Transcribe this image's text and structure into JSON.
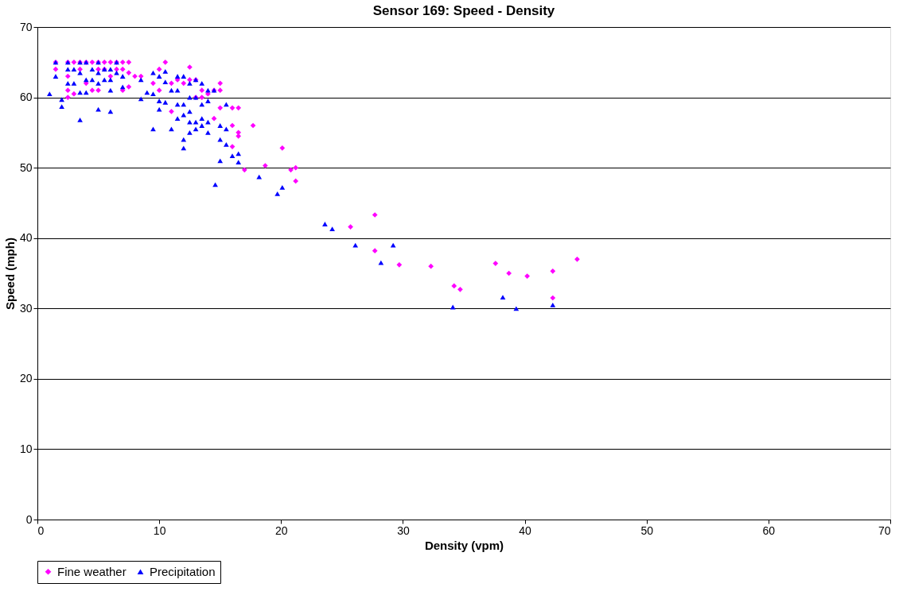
{
  "chart_data": {
    "type": "scatter",
    "title": "Sensor 169: Speed - Density",
    "xlabel": "Density (vpm)",
    "ylabel": "Speed (mph)",
    "xlim": [
      0,
      70
    ],
    "xticks": [
      0,
      10,
      20,
      30,
      40,
      50,
      60,
      70
    ],
    "ylim": [
      0,
      70
    ],
    "yticks": [
      0,
      10,
      20,
      30,
      40,
      50,
      60,
      70
    ],
    "grid": "y",
    "legend": "bottom",
    "series": [
      {
        "name": "Fine weather",
        "color": "#ff00ff",
        "marker": "diamond",
        "x": [
          1.5,
          1.5,
          2.5,
          2.5,
          2.5,
          2.5,
          3,
          3,
          3.5,
          3.5,
          4,
          4,
          4.5,
          4.5,
          5,
          5,
          5,
          5.5,
          5.5,
          6,
          6,
          6.5,
          6.5,
          7,
          7,
          7,
          7.5,
          7.5,
          7.5,
          8,
          8.5,
          9.5,
          10,
          10,
          10.5,
          11,
          11,
          11.5,
          12,
          12.5,
          12.5,
          13,
          13,
          13.5,
          13.5,
          14,
          14.5,
          14.5,
          15,
          15,
          15,
          16,
          16,
          16.5,
          16.5,
          16.5,
          16,
          17,
          17.7,
          18.7,
          20.1,
          20.8,
          21.2,
          21.2,
          25.7,
          27.7,
          27.7,
          29.7,
          32.3,
          34.2,
          34.7,
          37.6,
          38.7,
          40.2,
          42.3,
          42.3,
          44.3
        ],
        "values": [
          64,
          65,
          65,
          63,
          61,
          60,
          65,
          60.5,
          65,
          64,
          65,
          62,
          65,
          61,
          65,
          64,
          61,
          65,
          64,
          65,
          63,
          65,
          64,
          65,
          64,
          61,
          65,
          63.5,
          61.5,
          63,
          63,
          62,
          64,
          61,
          65,
          62,
          58,
          62.5,
          62,
          64.3,
          62.5,
          62.5,
          60,
          61,
          60,
          60.5,
          61,
          57,
          62,
          61,
          58.5,
          58.5,
          56,
          58.5,
          55,
          54.5,
          53,
          49.7,
          56,
          50.3,
          52.8,
          49.7,
          50,
          48.1,
          41.6,
          43.3,
          38.2,
          36.2,
          36,
          33.2,
          32.7,
          36.4,
          35,
          34.6,
          35.3,
          31.5,
          37
        ]
      },
      {
        "name": "Precipitation",
        "color": "#0000ff",
        "marker": "triangle",
        "x": [
          1,
          1.5,
          1.5,
          2,
          2,
          2.5,
          2.5,
          2.5,
          3,
          3,
          3.5,
          3.5,
          3.5,
          3.5,
          4,
          4,
          4,
          4.5,
          4.5,
          5,
          5,
          5,
          5,
          5.5,
          5.5,
          6,
          6,
          6,
          6,
          6.5,
          6.5,
          7,
          7,
          8.5,
          8.5,
          9,
          9.5,
          9.5,
          9.5,
          10,
          10,
          10,
          10.5,
          10.5,
          10.5,
          11,
          11,
          11.5,
          11.5,
          11.5,
          11.5,
          12,
          12,
          12,
          12,
          12,
          12.5,
          12.5,
          12.5,
          12.5,
          12.5,
          13,
          13,
          13,
          13,
          13.5,
          13.5,
          13.5,
          13.5,
          14,
          14,
          14,
          14,
          14.5,
          15,
          15,
          15,
          15.5,
          15.5,
          15.5,
          16,
          16.5,
          16.5,
          18.2,
          19.7,
          20.1,
          14.6,
          23.6,
          24.2,
          26.1,
          28.2,
          29.2,
          34.1,
          38.2,
          39.3,
          42.3
        ],
        "values": [
          60.5,
          65,
          63,
          59.7,
          58.7,
          65,
          64,
          62,
          64,
          62,
          65,
          63.5,
          60.7,
          56.8,
          65,
          62.5,
          60.7,
          64,
          62.5,
          65,
          63.5,
          62,
          58.3,
          64,
          62.5,
          64,
          62.5,
          61,
          58,
          65,
          63.5,
          63,
          61.5,
          62.5,
          59.8,
          60.7,
          63.5,
          60.5,
          55.5,
          63,
          59.5,
          58.3,
          63.7,
          62.2,
          59.3,
          61,
          55.5,
          63,
          61,
          59,
          57,
          63,
          59,
          57.5,
          54,
          52.8,
          62,
          60,
          58,
          56.5,
          55,
          62.5,
          60,
          56.5,
          55.5,
          62,
          59,
          57,
          56,
          61,
          59.5,
          56.5,
          55,
          61,
          56,
          54,
          51,
          59,
          55.5,
          53.3,
          51.7,
          52,
          50.8,
          48.7,
          46.3,
          47.2,
          47.6,
          42,
          41.3,
          39,
          36.5,
          39,
          30.2,
          31.6,
          30,
          30.5
        ]
      }
    ]
  }
}
